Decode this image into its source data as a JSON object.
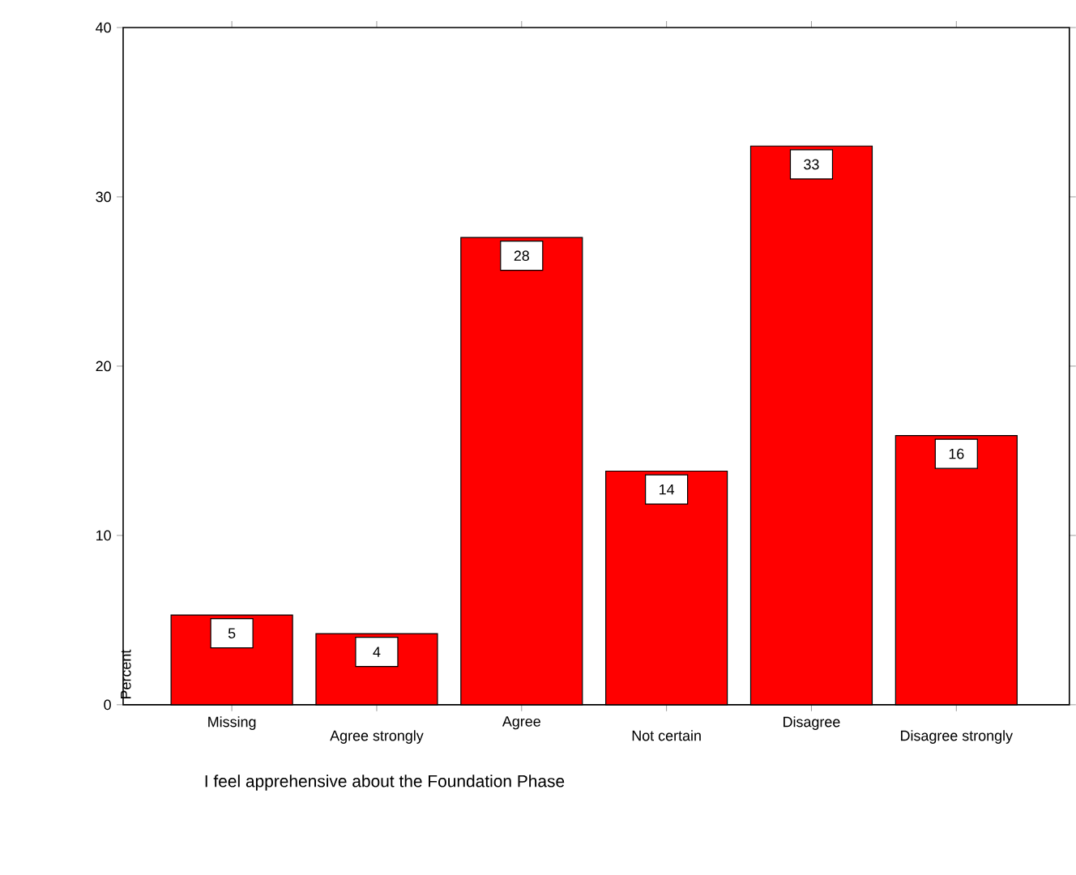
{
  "chart_data": {
    "type": "bar",
    "categories": [
      "Missing",
      "Agree strongly",
      "Agree",
      "Not certain",
      "Disagree",
      "Disagree strongly"
    ],
    "values": [
      5.3,
      4.2,
      27.6,
      13.8,
      33.0,
      15.9
    ],
    "value_labels": [
      "5",
      "4",
      "28",
      "14",
      "33",
      "16"
    ],
    "color": "#ff0000",
    "ylim": [
      0,
      40
    ],
    "yticks": [
      0,
      10,
      20,
      30,
      40
    ],
    "xlabel": "I feel apprehensive about the Foundation Phase",
    "ylabel": "Percent"
  }
}
